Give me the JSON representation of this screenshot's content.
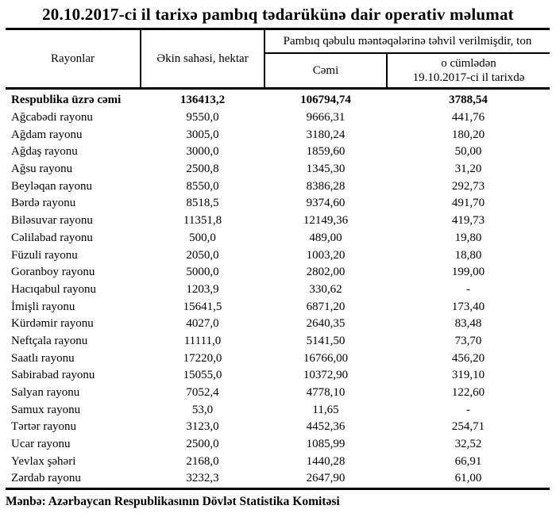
{
  "page": {
    "title": "20.10.2017-ci il tarixə pambıq tədarükünə dair operativ məlumat",
    "source_note": "Mənbə: Azərbaycan Respublikasının Dövlət Statistika Komitəsi"
  },
  "table": {
    "column_headers": {
      "regions": "Rayonlar",
      "sown_area": "Əkin sahəsi, hektar",
      "delivered_group": "Pambıq qəbulu məntəqələrinə təhvil verilmişdir, ton",
      "delivered_total": "Cəmi",
      "delivered_on_date_line1": "o cümlədən",
      "delivered_on_date_line2": "19.10.2017-ci il tarixdə"
    },
    "rows": [
      {
        "region": "Respublika üzrə cəmi",
        "sown_area": "136413,2",
        "delivered_total": "106794,74",
        "delivered_on_date": "3788,54",
        "emphasis": true
      },
      {
        "region": "Ağcabədi rayonu",
        "sown_area": "9550,0",
        "delivered_total": "9666,31",
        "delivered_on_date": "441,76",
        "emphasis": false
      },
      {
        "region": "Ağdam rayonu",
        "sown_area": "3005,0",
        "delivered_total": "3180,24",
        "delivered_on_date": "180,20",
        "emphasis": false
      },
      {
        "region": "Ağdaş rayonu",
        "sown_area": "3000,0",
        "delivered_total": "1859,60",
        "delivered_on_date": "50,00",
        "emphasis": false
      },
      {
        "region": "Ağsu rayonu",
        "sown_area": "2500,8",
        "delivered_total": "1345,30",
        "delivered_on_date": "31,20",
        "emphasis": false
      },
      {
        "region": "Beyləqan rayonu",
        "sown_area": "8550,0",
        "delivered_total": "8386,28",
        "delivered_on_date": "292,73",
        "emphasis": false
      },
      {
        "region": "Bərdə rayonu",
        "sown_area": "8518,5",
        "delivered_total": "9374,60",
        "delivered_on_date": "491,70",
        "emphasis": false
      },
      {
        "region": "Biləsuvar rayonu",
        "sown_area": "11351,8",
        "delivered_total": "12149,36",
        "delivered_on_date": "419,73",
        "emphasis": false
      },
      {
        "region": "Cəlilabad rayonu",
        "sown_area": "500,0",
        "delivered_total": "489,00",
        "delivered_on_date": "19,80",
        "emphasis": false
      },
      {
        "region": "Füzuli rayonu",
        "sown_area": "2050,0",
        "delivered_total": "1003,20",
        "delivered_on_date": "18,80",
        "emphasis": false
      },
      {
        "region": "Goranboy rayonu",
        "sown_area": "5000,0",
        "delivered_total": "2802,00",
        "delivered_on_date": "199,00",
        "emphasis": false
      },
      {
        "region": "Hacıqabul rayonu",
        "sown_area": "1203,9",
        "delivered_total": "330,62",
        "delivered_on_date": "-",
        "emphasis": false
      },
      {
        "region": "İmişli rayonu",
        "sown_area": "15641,5",
        "delivered_total": "6871,20",
        "delivered_on_date": "173,40",
        "emphasis": false
      },
      {
        "region": "Kürdəmir rayonu",
        "sown_area": "4027,0",
        "delivered_total": "2640,35",
        "delivered_on_date": "83,48",
        "emphasis": false
      },
      {
        "region": "Neftçala rayonu",
        "sown_area": "11111,0",
        "delivered_total": "5141,50",
        "delivered_on_date": "73,70",
        "emphasis": false
      },
      {
        "region": "Saatlı rayonu",
        "sown_area": "17220,0",
        "delivered_total": "16766,00",
        "delivered_on_date": "456,20",
        "emphasis": false
      },
      {
        "region": "Sabirabad rayonu",
        "sown_area": "15055,0",
        "delivered_total": "10372,90",
        "delivered_on_date": "319,10",
        "emphasis": false
      },
      {
        "region": "Salyan rayonu",
        "sown_area": "7052,4",
        "delivered_total": "4778,10",
        "delivered_on_date": "122,60",
        "emphasis": false
      },
      {
        "region": "Samux rayonu",
        "sown_area": "53,0",
        "delivered_total": "11,65",
        "delivered_on_date": "-",
        "emphasis": false
      },
      {
        "region": "Tərtər rayonu",
        "sown_area": "3123,0",
        "delivered_total": "4452,36",
        "delivered_on_date": "254,71",
        "emphasis": false
      },
      {
        "region": "Ucar rayonu",
        "sown_area": "2500,0",
        "delivered_total": "1085,99",
        "delivered_on_date": "32,52",
        "emphasis": false
      },
      {
        "region": "Yevlax şəhəri",
        "sown_area": "2168,0",
        "delivered_total": "1440,28",
        "delivered_on_date": "66,91",
        "emphasis": false
      },
      {
        "region": "Zərdab rayonu",
        "sown_area": "3232,3",
        "delivered_total": "2647,90",
        "delivered_on_date": "61,00",
        "emphasis": false
      }
    ]
  },
  "colors": {
    "text": "#000000",
    "background": "#ffffff",
    "rule": "#000000"
  }
}
